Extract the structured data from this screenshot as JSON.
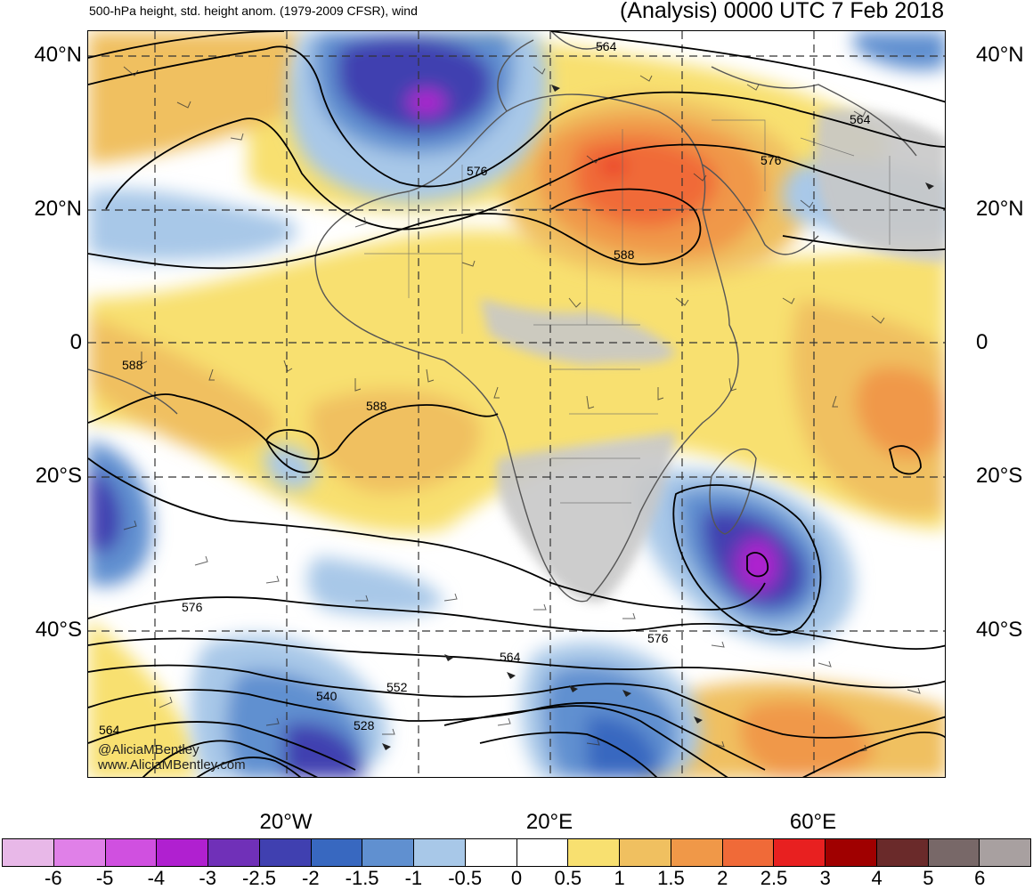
{
  "header": {
    "left": "500-hPa height, std. height anom. (1979-2009 CFSR), wind",
    "right": "(Analysis) 0000 UTC 7 Feb 2018"
  },
  "axes": {
    "lat_labels": [
      "40°N",
      "20°N",
      "0",
      "20°S",
      "40°S"
    ],
    "lon_labels": [
      "20°W",
      "20°E",
      "60°E"
    ]
  },
  "contour_labels": [
    "564",
    "564",
    "576",
    "576",
    "588",
    "588",
    "588",
    "576",
    "576",
    "564",
    "552",
    "540",
    "528",
    "564"
  ],
  "colorbar": {
    "colors": [
      "#e8b8e8",
      "#e080e8",
      "#d050e0",
      "#b020d0",
      "#7030b8",
      "#4040b0",
      "#3868c0",
      "#6090d0",
      "#a8c8e8",
      "#ffffff",
      "#ffffff",
      "#f8e070",
      "#f0c060",
      "#f09848",
      "#f06a38",
      "#e82020",
      "#a00000",
      "#6a2a2a",
      "#786868",
      "#a8a0a0"
    ],
    "labels": [
      "-6",
      "-5",
      "-4",
      "-3",
      "-2.5",
      "-2",
      "-1.5",
      "-1",
      "-0.5",
      "0",
      "0.5",
      "1",
      "1.5",
      "2",
      "2.5",
      "3",
      "4",
      "5",
      "6"
    ]
  },
  "credits": {
    "handle": "@AliciaMBentley",
    "site": "www.AliciaMBentley.com"
  }
}
